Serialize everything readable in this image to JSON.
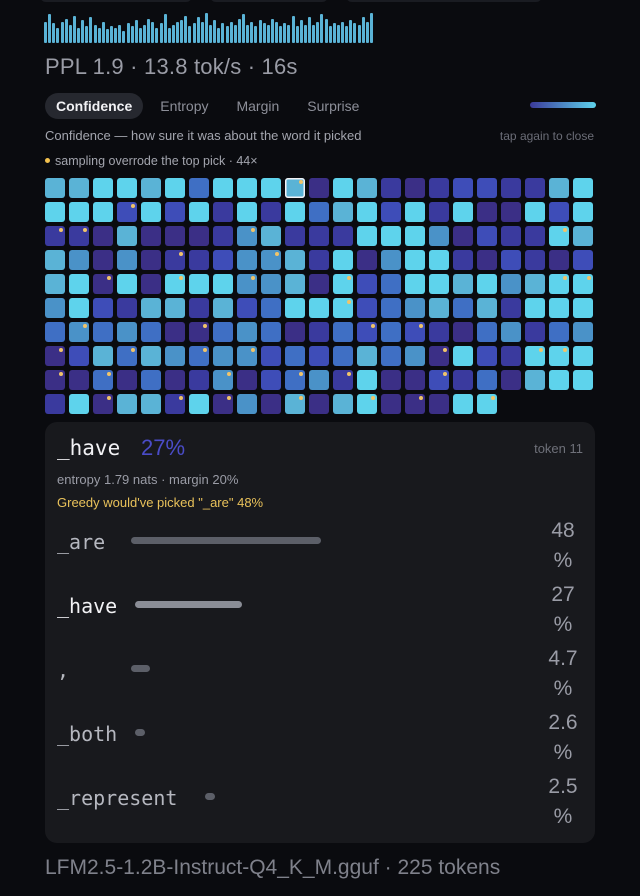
{
  "colors": {
    "cell_levels": [
      "#5ed3ec",
      "#5ab3d6",
      "#4a92c8",
      "#3f6fc4",
      "#3e4db8",
      "#3a3a9e",
      "#3b2f86"
    ],
    "marker": "#f0c46a",
    "accent_pct": "#4a4cc8",
    "greedy_text": "#e8c15a"
  },
  "sparkline": [
    0.7,
    0.95,
    0.65,
    0.5,
    0.7,
    0.8,
    0.6,
    0.9,
    0.5,
    0.75,
    0.55,
    0.85,
    0.6,
    0.5,
    0.7,
    0.45,
    0.55,
    0.5,
    0.6,
    0.4,
    0.65,
    0.55,
    0.75,
    0.5,
    0.6,
    0.8,
    0.7,
    0.5,
    0.65,
    0.95,
    0.5,
    0.6,
    0.7,
    0.75,
    0.9,
    0.55,
    0.65,
    0.85,
    0.7,
    1.0,
    0.6,
    0.75,
    0.5,
    0.65,
    0.55,
    0.7,
    0.6,
    0.8,
    0.95,
    0.6,
    0.7,
    0.55,
    0.75,
    0.65,
    0.6,
    0.8,
    0.7,
    0.55,
    0.65,
    0.6,
    0.9,
    0.55,
    0.75,
    0.6,
    0.85,
    0.6,
    0.7,
    0.95,
    0.8,
    0.55,
    0.65,
    0.6,
    0.7,
    0.55,
    0.75,
    0.65,
    0.6,
    0.85,
    0.7,
    1.0
  ],
  "stats": "PPL 1.9 · 13.8 tok/s · 16s",
  "tabs": [
    {
      "label": "Confidence",
      "active": true
    },
    {
      "label": "Entropy",
      "active": false
    },
    {
      "label": "Margin",
      "active": false
    },
    {
      "label": "Surprise",
      "active": false
    }
  ],
  "description": "Confidence — how sure it was about the word it picked",
  "close_hint": "tap again to close",
  "legend": "sampling overrode the top pick · 44×",
  "grid": {
    "columns": 23,
    "selected_index": 10,
    "rows": [
      "11001030001601565445510",
      "00040405050310405066040",
      "55616665215550002645501",
      "12626554221506200564564",
      "10606000221604300102100",
      "20451151430004321315000",
      "32323663236534345632532",
      "64131232243431326045000",
      "66363652643250664536100",
      "5061150626161066600"
    ],
    "markers": [
      10,
      26,
      46,
      47,
      54,
      67,
      74,
      78,
      94,
      97,
      100,
      104,
      113,
      114,
      127,
      139,
      144,
      151,
      153,
      161,
      164,
      167,
      169,
      177,
      181,
      182,
      184,
      186,
      191,
      194,
      196,
      200,
      209,
      212,
      214,
      217,
      220,
      222,
      225,
      234,
      237,
      245,
      258,
      262
    ]
  },
  "detail": {
    "token": "_have",
    "probability": "27%",
    "position": "token 11",
    "meta": "entropy 1.79 nats · margin 20%",
    "greedy_note": "Greedy would've picked \"_are\" 48%",
    "candidates": [
      {
        "token": "_are",
        "pct": "48",
        "pct_unit": "%",
        "value": 48,
        "chosen": false
      },
      {
        "token": "_have",
        "pct": "27",
        "pct_unit": "%",
        "value": 27,
        "chosen": true
      },
      {
        "token": ",",
        "pct": "4.7",
        "pct_unit": "%",
        "value": 4.7,
        "chosen": false
      },
      {
        "token": "_both",
        "pct": "2.6",
        "pct_unit": "%",
        "value": 2.6,
        "chosen": false
      },
      {
        "token": "_represent",
        "pct": "2.5",
        "pct_unit": "%",
        "value": 2.5,
        "chosen": false
      }
    ]
  },
  "footer": "LFM2.5-1.2B-Instruct-Q4_K_M.gguf · 225 tokens"
}
